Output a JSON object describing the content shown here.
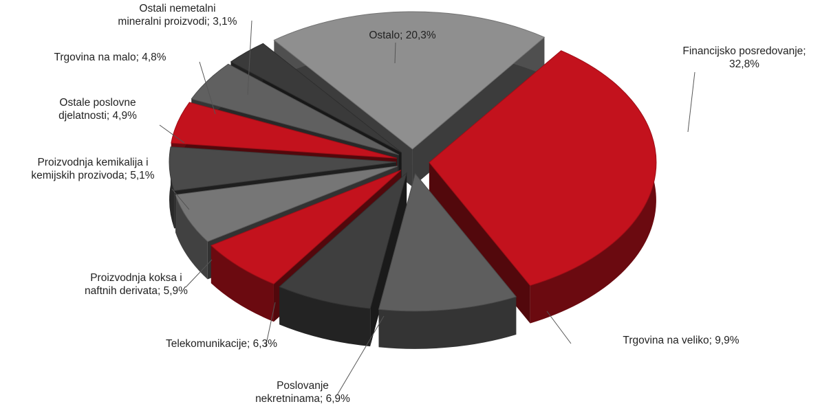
{
  "chart_data": {
    "type": "pie",
    "title": "",
    "slices": [
      {
        "label_lines": [
          "Financijsko posredovanje;",
          "32,8%"
        ],
        "value": 32.8,
        "color": "#c3121d"
      },
      {
        "label_lines": [
          "Trgovina na veliko; 9,9%"
        ],
        "value": 9.9,
        "color": "#5e5e5e"
      },
      {
        "label_lines": [
          "Poslovanje",
          "nekretninama; 6,9%"
        ],
        "value": 6.9,
        "color": "#3f3f3f"
      },
      {
        "label_lines": [
          "Telekomunikacije; 6,3%"
        ],
        "value": 6.3,
        "color": "#c3121d"
      },
      {
        "label_lines": [
          "Proizvodnja koksa i",
          "naftnih derivata; 5,9%"
        ],
        "value": 5.9,
        "color": "#767676"
      },
      {
        "label_lines": [
          "Proizvodnja kemikalija i",
          "kemijskih prozivoda; 5,1%"
        ],
        "value": 5.1,
        "color": "#4a4a4a"
      },
      {
        "label_lines": [
          "Ostale poslovne",
          "djelatnosti; 4,9%"
        ],
        "value": 4.9,
        "color": "#c3121d"
      },
      {
        "label_lines": [
          "Trgovina na malo; 4,8%"
        ],
        "value": 4.8,
        "color": "#606060"
      },
      {
        "label_lines": [
          "Ostali nemetalni",
          "mineralni proizvodi; 3,1%"
        ],
        "value": 3.1,
        "color": "#3a3a3a"
      },
      {
        "label_lines": [
          "Ostalo; 20,3%"
        ],
        "value": 20.3,
        "color": "#8f8f8f"
      }
    ]
  }
}
